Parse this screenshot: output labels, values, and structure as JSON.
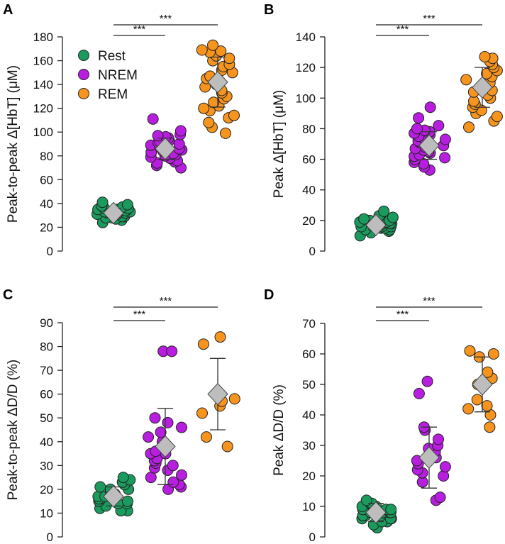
{
  "colors": {
    "rest": "#1a9a5c",
    "nrem": "#b81ee0",
    "rem": "#f7941d",
    "mean_marker": "#bdbdbd",
    "stroke": "#222222"
  },
  "legend": [
    {
      "label": "Rest",
      "key": "rest"
    },
    {
      "label": "NREM",
      "key": "nrem"
    },
    {
      "label": "REM",
      "key": "rem"
    }
  ],
  "chart_data": [
    {
      "panel": "A",
      "type": "scatter",
      "ylabel": "Peak-to-peak Δ[HbT] (μM)",
      "ylim": [
        0,
        180
      ],
      "yticks": [
        0,
        20,
        40,
        60,
        80,
        100,
        120,
        140,
        160,
        180
      ],
      "categories": [
        "Rest",
        "NREM",
        "REM"
      ],
      "series": [
        {
          "name": "Rest",
          "key": "rest",
          "mean": 32,
          "sd": 4,
          "values": [
            24,
            26,
            27,
            28,
            28,
            29,
            29,
            30,
            30,
            30,
            31,
            31,
            31,
            32,
            32,
            32,
            33,
            33,
            33,
            34,
            34,
            34,
            35,
            35,
            36,
            36,
            37,
            38,
            39,
            41
          ]
        },
        {
          "name": "NREM",
          "key": "nrem",
          "mean": 86,
          "sd": 9,
          "values": [
            70,
            72,
            74,
            75,
            76,
            78,
            79,
            80,
            81,
            82,
            83,
            84,
            85,
            86,
            86,
            87,
            88,
            89,
            90,
            91,
            92,
            93,
            95,
            96,
            97,
            98,
            101,
            111
          ]
        },
        {
          "name": "REM",
          "key": "rem",
          "mean": 142,
          "sd": 21,
          "values": [
            99,
            104,
            108,
            112,
            114,
            118,
            120,
            122,
            125,
            128,
            130,
            133,
            135,
            138,
            140,
            142,
            145,
            147,
            150,
            152,
            155,
            157,
            160,
            162,
            164,
            167,
            168,
            169,
            173
          ]
        }
      ],
      "significance": [
        {
          "from": "Rest",
          "to": "NREM",
          "label": "***"
        },
        {
          "from": "Rest",
          "to": "REM",
          "label": "***"
        }
      ],
      "legend": "top-left"
    },
    {
      "panel": "B",
      "type": "scatter",
      "ylabel": "Peak Δ[HbT] (μM)",
      "ylim": [
        0,
        140
      ],
      "yticks": [
        0,
        20,
        40,
        60,
        80,
        100,
        120,
        140
      ],
      "categories": [
        "Rest",
        "NREM",
        "REM"
      ],
      "series": [
        {
          "name": "Rest",
          "key": "rest",
          "mean": 17,
          "sd": 3,
          "values": [
            10,
            12,
            13,
            14,
            14,
            15,
            15,
            16,
            16,
            16,
            17,
            17,
            17,
            18,
            18,
            18,
            19,
            19,
            20,
            20,
            21,
            22,
            23,
            26
          ]
        },
        {
          "name": "NREM",
          "key": "nrem",
          "mean": 69,
          "sd": 9,
          "values": [
            53,
            55,
            57,
            58,
            60,
            61,
            62,
            63,
            64,
            65,
            66,
            67,
            68,
            69,
            70,
            71,
            72,
            73,
            74,
            75,
            76,
            77,
            78,
            79,
            80,
            82,
            87,
            94
          ]
        },
        {
          "name": "REM",
          "key": "rem",
          "mean": 107,
          "sd": 13,
          "values": [
            81,
            85,
            88,
            90,
            92,
            94,
            96,
            98,
            100,
            102,
            104,
            105,
            106,
            108,
            110,
            112,
            114,
            116,
            118,
            120,
            122,
            124,
            126,
            127
          ]
        }
      ],
      "significance": [
        {
          "from": "Rest",
          "to": "NREM",
          "label": "***"
        },
        {
          "from": "Rest",
          "to": "REM",
          "label": "***"
        }
      ]
    },
    {
      "panel": "C",
      "type": "scatter",
      "ylabel": "Peak-to-peak ΔD/D (%)",
      "ylim": [
        0,
        90
      ],
      "yticks": [
        0,
        10,
        20,
        30,
        40,
        50,
        60,
        70,
        80,
        90
      ],
      "categories": [
        "Rest",
        "NREM",
        "REM"
      ],
      "series": [
        {
          "name": "Rest",
          "key": "rest",
          "mean": 17,
          "sd": 4,
          "values": [
            11,
            11,
            12,
            13,
            14,
            14,
            15,
            15,
            16,
            16,
            17,
            17,
            18,
            18,
            19,
            20,
            20,
            21,
            22,
            23,
            24,
            25
          ]
        },
        {
          "name": "NREM",
          "key": "nrem",
          "mean": 38,
          "sd": 16,
          "values": [
            20,
            21,
            22,
            23,
            25,
            26,
            28,
            29,
            30,
            31,
            32,
            33,
            35,
            35,
            36,
            38,
            40,
            42,
            44,
            46,
            48,
            50,
            78,
            78
          ]
        },
        {
          "name": "REM",
          "key": "rem",
          "mean": 60,
          "sd": 15,
          "values": [
            38,
            42,
            52,
            55,
            57,
            58,
            60,
            81,
            84
          ]
        }
      ],
      "significance": [
        {
          "from": "Rest",
          "to": "NREM",
          "label": "***"
        },
        {
          "from": "Rest",
          "to": "REM",
          "label": "***"
        }
      ]
    },
    {
      "panel": "D",
      "type": "scatter",
      "ylabel": "Peak ΔD/D (%)",
      "ylim": [
        0,
        70
      ],
      "yticks": [
        0,
        10,
        20,
        30,
        40,
        50,
        60,
        70
      ],
      "categories": [
        "Rest",
        "NREM",
        "REM"
      ],
      "series": [
        {
          "name": "Rest",
          "key": "rest",
          "mean": 8,
          "sd": 3,
          "values": [
            3,
            4,
            5,
            5,
            6,
            6,
            6,
            7,
            7,
            7,
            7,
            8,
            8,
            8,
            8,
            9,
            9,
            9,
            10,
            10,
            10,
            11,
            11,
            12
          ]
        },
        {
          "name": "NREM",
          "key": "nrem",
          "mean": 26,
          "sd": 10,
          "values": [
            12,
            13,
            18,
            20,
            21,
            22,
            23,
            24,
            25,
            26,
            27,
            28,
            29,
            30,
            32,
            35,
            36,
            47,
            51
          ]
        },
        {
          "name": "REM",
          "key": "rem",
          "mean": 50,
          "sd": 9,
          "values": [
            36,
            40,
            42,
            43,
            45,
            50,
            52,
            54,
            59,
            60,
            61
          ]
        }
      ],
      "significance": [
        {
          "from": "Rest",
          "to": "NREM",
          "label": "***"
        },
        {
          "from": "Rest",
          "to": "REM",
          "label": "***"
        }
      ]
    }
  ]
}
